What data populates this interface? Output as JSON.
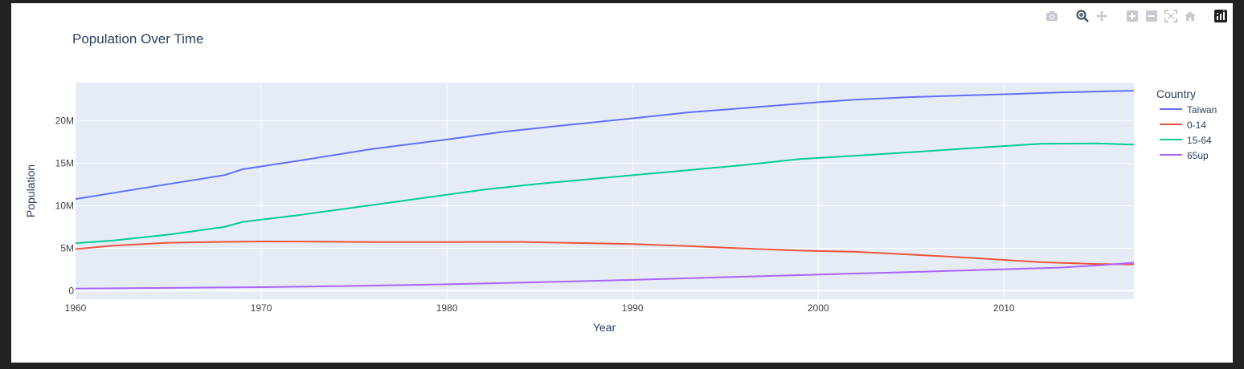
{
  "modebar": {
    "buttons": [
      "camera-icon",
      "zoom-icon",
      "pan-icon",
      "zoom-in-icon",
      "zoom-out-icon",
      "autoscale-icon",
      "reset-axes-icon",
      "plotly-logo-icon"
    ]
  },
  "colors": {
    "plot_bg": "#e5ecf6",
    "grid": "#ffffff",
    "text": "#2a3f5f",
    "tick_text": "#444444"
  },
  "chart_data": {
    "type": "line",
    "title": "Population Over Time",
    "xlabel": "Year",
    "ylabel": "Population",
    "xlim": [
      1960,
      2017
    ],
    "ylim": [
      -1000000,
      24500000
    ],
    "xticks": [
      1960,
      1970,
      1980,
      1990,
      2000,
      2010
    ],
    "yticks": [
      {
        "value": 0,
        "label": "0"
      },
      {
        "value": 5000000,
        "label": "5M"
      },
      {
        "value": 10000000,
        "label": "10M"
      },
      {
        "value": 15000000,
        "label": "15M"
      },
      {
        "value": 20000000,
        "label": "20M"
      }
    ],
    "grid": true,
    "legend_title": "Country",
    "legend_position": "right",
    "series": [
      {
        "name": "Taiwan",
        "color": "#636efa",
        "x": [
          1960,
          1964,
          1968,
          1969,
          1972,
          1976,
          1980,
          1983,
          1986,
          1990,
          1993,
          1996,
          2000,
          2002,
          2005,
          2008,
          2011,
          2013,
          2015,
          2017
        ],
        "y": [
          10800000,
          12200000,
          13600000,
          14300000,
          15300000,
          16700000,
          17800000,
          18700000,
          19400000,
          20300000,
          21000000,
          21500000,
          22200000,
          22500000,
          22800000,
          23000000,
          23200000,
          23350000,
          23450000,
          23550000
        ]
      },
      {
        "name": "0-14",
        "color": "#ef553b",
        "x": [
          1960,
          1962,
          1965,
          1968,
          1970,
          1973,
          1976,
          1980,
          1984,
          1990,
          1993,
          1996,
          1999,
          2002,
          2005,
          2008,
          2012,
          2015,
          2017
        ],
        "y": [
          4900000,
          5300000,
          5650000,
          5750000,
          5800000,
          5780000,
          5720000,
          5720000,
          5740000,
          5500000,
          5250000,
          4980000,
          4720000,
          4580000,
          4250000,
          3900000,
          3350000,
          3150000,
          3100000
        ]
      },
      {
        "name": "15-64",
        "color": "#00cc96",
        "x": [
          1960,
          1962,
          1965,
          1968,
          1969,
          1972,
          1976,
          1980,
          1982,
          1985,
          1990,
          1993,
          1996,
          1999,
          2002,
          2005,
          2009,
          2012,
          2015,
          2017
        ],
        "y": [
          5600000,
          5900000,
          6600000,
          7500000,
          8100000,
          8900000,
          10100000,
          11300000,
          11900000,
          12600000,
          13600000,
          14200000,
          14800000,
          15500000,
          15900000,
          16300000,
          16900000,
          17300000,
          17350000,
          17200000
        ]
      },
      {
        "name": "65up",
        "color": "#ab63fa",
        "x": [
          1960,
          1965,
          1970,
          1975,
          1980,
          1985,
          1990,
          1995,
          2000,
          2005,
          2010,
          2013,
          2015,
          2017
        ],
        "y": [
          250000,
          330000,
          420000,
          570000,
          760000,
          1000000,
          1280000,
          1600000,
          1900000,
          2200000,
          2530000,
          2720000,
          2980000,
          3300000
        ]
      }
    ]
  }
}
